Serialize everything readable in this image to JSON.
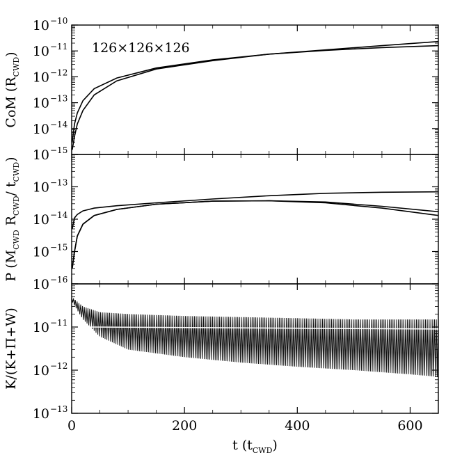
{
  "chart_data": [
    {
      "type": "line",
      "panel": "top",
      "ylabel": {
        "main": "CoM  (R",
        "sub": "CWD",
        "end": ")"
      },
      "yscale": "log",
      "ylim": [
        1e-15,
        1e-10
      ],
      "yticks": [
        {
          "base": "10",
          "exp": "−10"
        },
        {
          "base": "10",
          "exp": "−11"
        },
        {
          "base": "10",
          "exp": "−12"
        },
        {
          "base": "10",
          "exp": "−13"
        },
        {
          "base": "10",
          "exp": "−14"
        },
        {
          "base": "10",
          "exp": "−15"
        }
      ],
      "annotation": "126×126×126",
      "xlim": [
        0,
        650
      ],
      "series": [
        {
          "x": [
            1,
            5,
            10,
            20,
            40,
            80,
            150,
            250,
            350,
            450,
            550,
            650
          ],
          "y": [
            3e-15,
            1.5e-14,
            4e-14,
            1.2e-13,
            3.5e-13,
            9e-13,
            2.2e-12,
            4.5e-12,
            7.5e-12,
            1.1e-11,
            1.6e-11,
            2.3e-11
          ]
        },
        {
          "x": [
            1,
            5,
            10,
            20,
            40,
            80,
            150,
            250,
            350,
            450,
            550,
            650
          ],
          "y": [
            1.5e-15,
            5e-15,
            1.5e-14,
            5e-14,
            2e-13,
            7e-13,
            2e-12,
            4.2e-12,
            7.5e-12,
            1.05e-11,
            1.35e-11,
            1.6e-11
          ]
        }
      ]
    },
    {
      "type": "line",
      "panel": "middle",
      "ylabel": {
        "main": "P  (M",
        "sub": "CWD",
        "mid": " R",
        "sub2": "CWD",
        "end": "/ t",
        "sub3": "CWD",
        "end2": ")"
      },
      "yscale": "log",
      "ylim": [
        1e-16,
        1e-12
      ],
      "yticks": [
        {
          "base": "10",
          "exp": "−13"
        },
        {
          "base": "10",
          "exp": "−14"
        },
        {
          "base": "10",
          "exp": "−15"
        },
        {
          "base": "10",
          "exp": "−16"
        }
      ],
      "xlim": [
        0,
        650
      ],
      "series": [
        {
          "x": [
            1,
            5,
            10,
            20,
            40,
            80,
            150,
            250,
            350,
            450,
            550,
            650
          ],
          "y": [
            5e-15,
            1.1e-14,
            1.4e-14,
            1.8e-14,
            2.2e-14,
            2.6e-14,
            3.2e-14,
            4.2e-14,
            5.3e-14,
            6.3e-14,
            6.8e-14,
            7e-14
          ]
        },
        {
          "x": [
            1,
            5,
            10,
            20,
            40,
            80,
            150,
            250,
            350,
            450,
            550,
            650
          ],
          "y": [
            3e-16,
            1e-15,
            3e-15,
            7e-15,
            1.3e-14,
            2e-14,
            2.9e-14,
            3.6e-14,
            3.7e-14,
            3.4e-14,
            2.5e-14,
            1.7e-14
          ]
        },
        {
          "x": [
            1,
            5,
            10,
            20,
            40,
            80,
            150,
            250,
            350,
            450,
            550,
            650
          ],
          "y": [
            3e-16,
            1e-15,
            3e-15,
            7e-15,
            1.3e-14,
            2e-14,
            2.9e-14,
            3.6e-14,
            3.7e-14,
            3.2e-14,
            2.2e-14,
            1.3e-14
          ]
        }
      ]
    },
    {
      "type": "line",
      "panel": "bottom",
      "ylabel": {
        "main": "K/(K+Π+W)"
      },
      "yscale": "log",
      "ylim": [
        1e-13,
        1e-10
      ],
      "yticks": [
        {
          "base": "10",
          "exp": "−11"
        },
        {
          "base": "10",
          "exp": "−12"
        },
        {
          "base": "10",
          "exp": "−13"
        }
      ],
      "xlabel": {
        "main": "t  (t",
        "sub": "CWD",
        "end": ")"
      },
      "xlim": [
        0,
        650
      ],
      "xticks": [
        "0",
        "200",
        "400",
        "600"
      ],
      "xtick_values": [
        0,
        200,
        400,
        600
      ],
      "envelope": {
        "x": [
          0,
          20,
          50,
          100,
          200,
          300,
          400,
          500,
          600,
          650
        ],
        "upper": [
          5e-11,
          3e-11,
          2.2e-11,
          2e-11,
          1.8e-11,
          1.7e-11,
          1.6e-11,
          1.5e-11,
          1.5e-11,
          1.5e-11
        ],
        "lower": [
          4e-11,
          1.5e-11,
          6e-12,
          3e-12,
          2e-12,
          1.5e-12,
          1.2e-12,
          1e-12,
          8e-13,
          7e-13
        ]
      },
      "mean_line": {
        "x": [
          30,
          650
        ],
        "y": [
          1e-11,
          9e-12
        ]
      }
    }
  ]
}
